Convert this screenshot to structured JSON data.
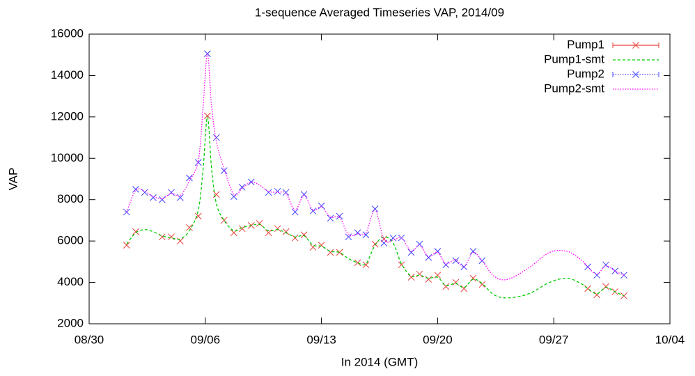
{
  "chart_data": {
    "type": "line",
    "title": "1-sequence Averaged Timeseries VAP, 2014/09",
    "xlabel": "In 2014 (GMT)",
    "ylabel": "VAP",
    "xlim": [
      0,
      35
    ],
    "xticks": [
      {
        "value": 0,
        "label": "08/30"
      },
      {
        "value": 7,
        "label": "09/06"
      },
      {
        "value": 14,
        "label": "09/13"
      },
      {
        "value": 21,
        "label": "09/20"
      },
      {
        "value": 28,
        "label": "09/27"
      },
      {
        "value": 35,
        "label": "10/04"
      }
    ],
    "ylim": [
      2000,
      16000
    ],
    "yticks": [
      2000,
      4000,
      6000,
      8000,
      10000,
      12000,
      14000,
      16000
    ],
    "grid": false,
    "legend": "top-right",
    "series": [
      {
        "name": "Pump1",
        "color": "#e8403a",
        "style": "points",
        "x": [
          2.26,
          2.81,
          4.4,
          4.95,
          5.49,
          6.04,
          6.58,
          7.13,
          7.67,
          8.13,
          8.72,
          9.22,
          9.77,
          10.27,
          10.81,
          11.36,
          11.86,
          12.41,
          12.95,
          13.49,
          14.0,
          14.54,
          15.09,
          16.18,
          16.68,
          17.23,
          17.77,
          18.82,
          19.41,
          19.91,
          20.45,
          21.0,
          21.5,
          22.09,
          22.59,
          23.14,
          23.68,
          30.05,
          30.6,
          31.14,
          31.69,
          32.23
        ],
        "values": [
          5800,
          6450,
          6200,
          6200,
          6000,
          6650,
          7200,
          12050,
          8250,
          7000,
          6400,
          6600,
          6750,
          6850,
          6400,
          6600,
          6450,
          6150,
          6300,
          5700,
          5800,
          5450,
          5450,
          4950,
          4850,
          5850,
          6100,
          4850,
          4250,
          4400,
          4150,
          4350,
          3800,
          4000,
          3700,
          4200,
          3900,
          3700,
          3400,
          3800,
          3550,
          3350
        ]
      },
      {
        "name": "Pump1-smt",
        "color": "#00cc00",
        "style": "dashed",
        "x": [
          2.26,
          2.81,
          3.35,
          3.86,
          4.4,
          4.95,
          5.49,
          6.04,
          6.58,
          6.87,
          7.13,
          7.38,
          7.67,
          8.13,
          8.72,
          9.22,
          9.77,
          10.27,
          10.81,
          11.36,
          11.86,
          12.41,
          12.95,
          13.49,
          14.0,
          14.54,
          15.09,
          15.63,
          16.18,
          16.68,
          17.23,
          17.77,
          18.32,
          18.82,
          19.41,
          19.91,
          20.45,
          21.0,
          21.5,
          22.09,
          22.59,
          23.14,
          23.68,
          24.4,
          25.23,
          26.49,
          27.75,
          28.8,
          29.63,
          30.05,
          30.6,
          31.14,
          31.69,
          32.23
        ],
        "values": [
          5850,
          6400,
          6550,
          6450,
          6250,
          6150,
          6100,
          6500,
          7500,
          9500,
          12000,
          9500,
          7800,
          7000,
          6500,
          6650,
          6750,
          6800,
          6500,
          6550,
          6400,
          6200,
          6250,
          5800,
          5750,
          5500,
          5450,
          5150,
          4950,
          4900,
          5800,
          6200,
          5900,
          4900,
          4300,
          4350,
          4200,
          4250,
          3850,
          3950,
          3750,
          4150,
          3950,
          3400,
          3250,
          3450,
          4000,
          4200,
          3950,
          3700,
          3450,
          3750,
          3550,
          3350
        ]
      },
      {
        "name": "Pump2",
        "color": "#4040ff",
        "style": "points",
        "x": [
          2.26,
          2.81,
          3.35,
          3.86,
          4.4,
          4.95,
          5.49,
          6.04,
          6.58,
          7.13,
          7.67,
          8.13,
          8.72,
          9.22,
          9.77,
          10.81,
          11.36,
          11.86,
          12.41,
          12.95,
          13.49,
          14.0,
          14.54,
          15.09,
          15.63,
          16.18,
          16.68,
          17.23,
          17.77,
          18.32,
          18.82,
          19.41,
          19.91,
          20.45,
          21.0,
          21.5,
          22.09,
          22.59,
          23.14,
          23.68,
          30.05,
          30.6,
          31.14,
          31.69,
          32.23
        ],
        "values": [
          7400,
          8500,
          8350,
          8100,
          8000,
          8350,
          8100,
          9050,
          9800,
          15050,
          11000,
          9400,
          8150,
          8600,
          8850,
          8350,
          8400,
          8350,
          7400,
          8250,
          7450,
          7700,
          7100,
          7200,
          6200,
          6400,
          6300,
          7550,
          5900,
          6150,
          6150,
          5450,
          5850,
          5200,
          5500,
          4850,
          5050,
          4750,
          5500,
          5050,
          4750,
          4350,
          4850,
          4550,
          4350
        ]
      },
      {
        "name": "Pump2-smt",
        "color": "#ff00ff",
        "style": "dotted",
        "x": [
          2.26,
          2.81,
          3.35,
          3.86,
          4.4,
          4.95,
          5.49,
          6.04,
          6.58,
          6.87,
          7.13,
          7.38,
          7.67,
          8.13,
          8.72,
          9.22,
          9.77,
          10.27,
          10.81,
          11.36,
          11.86,
          12.41,
          12.95,
          13.49,
          14.0,
          14.54,
          15.09,
          15.63,
          16.18,
          16.68,
          17.23,
          17.77,
          18.32,
          18.82,
          19.41,
          19.91,
          20.45,
          21.0,
          21.5,
          22.09,
          22.59,
          23.14,
          23.68,
          24.4,
          25.23,
          26.49,
          27.75,
          28.8,
          29.63,
          30.05,
          30.6,
          31.14,
          31.69,
          32.23
        ],
        "values": [
          7400,
          8450,
          8400,
          8150,
          8050,
          8300,
          8200,
          8900,
          9900,
          12500,
          15050,
          12500,
          10800,
          9500,
          8250,
          8550,
          8850,
          8700,
          8400,
          8350,
          8300,
          7500,
          8200,
          7500,
          7650,
          7150,
          7150,
          6300,
          6350,
          6400,
          7500,
          6050,
          6050,
          6150,
          5500,
          5800,
          5250,
          5450,
          4900,
          5100,
          4750,
          5450,
          5050,
          4300,
          4150,
          4700,
          5450,
          5500,
          5100,
          4750,
          4400,
          4800,
          4550,
          4350
        ]
      }
    ]
  }
}
